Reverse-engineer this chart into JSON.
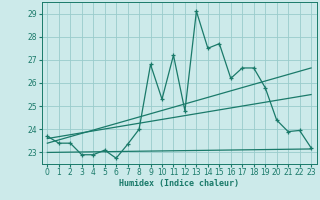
{
  "xlabel": "Humidex (Indice chaleur)",
  "bg_color": "#cceaea",
  "grid_color": "#99cccc",
  "line_color": "#1a7a6a",
  "xlim": [
    -0.5,
    23.5
  ],
  "ylim": [
    22.5,
    29.5
  ],
  "xticks": [
    0,
    1,
    2,
    3,
    4,
    5,
    6,
    7,
    8,
    9,
    10,
    11,
    12,
    13,
    14,
    15,
    16,
    17,
    18,
    19,
    20,
    21,
    22,
    23
  ],
  "yticks": [
    23,
    24,
    25,
    26,
    27,
    28,
    29
  ],
  "series1_x": [
    0,
    1,
    2,
    3,
    4,
    5,
    6,
    7,
    8,
    9,
    10,
    11,
    12,
    13,
    14,
    15,
    16,
    17,
    18,
    19,
    20,
    21,
    22,
    23
  ],
  "series1_y": [
    23.7,
    23.4,
    23.4,
    22.9,
    22.9,
    23.1,
    22.75,
    23.35,
    24.0,
    26.8,
    25.3,
    27.2,
    24.8,
    29.1,
    27.5,
    27.7,
    26.2,
    26.65,
    26.65,
    25.8,
    24.4,
    23.9,
    23.95,
    23.2
  ],
  "regline1_y": [
    23.4,
    26.65
  ],
  "regline2_y": [
    23.6,
    25.5
  ],
  "flatline_y": [
    23.0,
    23.15
  ]
}
